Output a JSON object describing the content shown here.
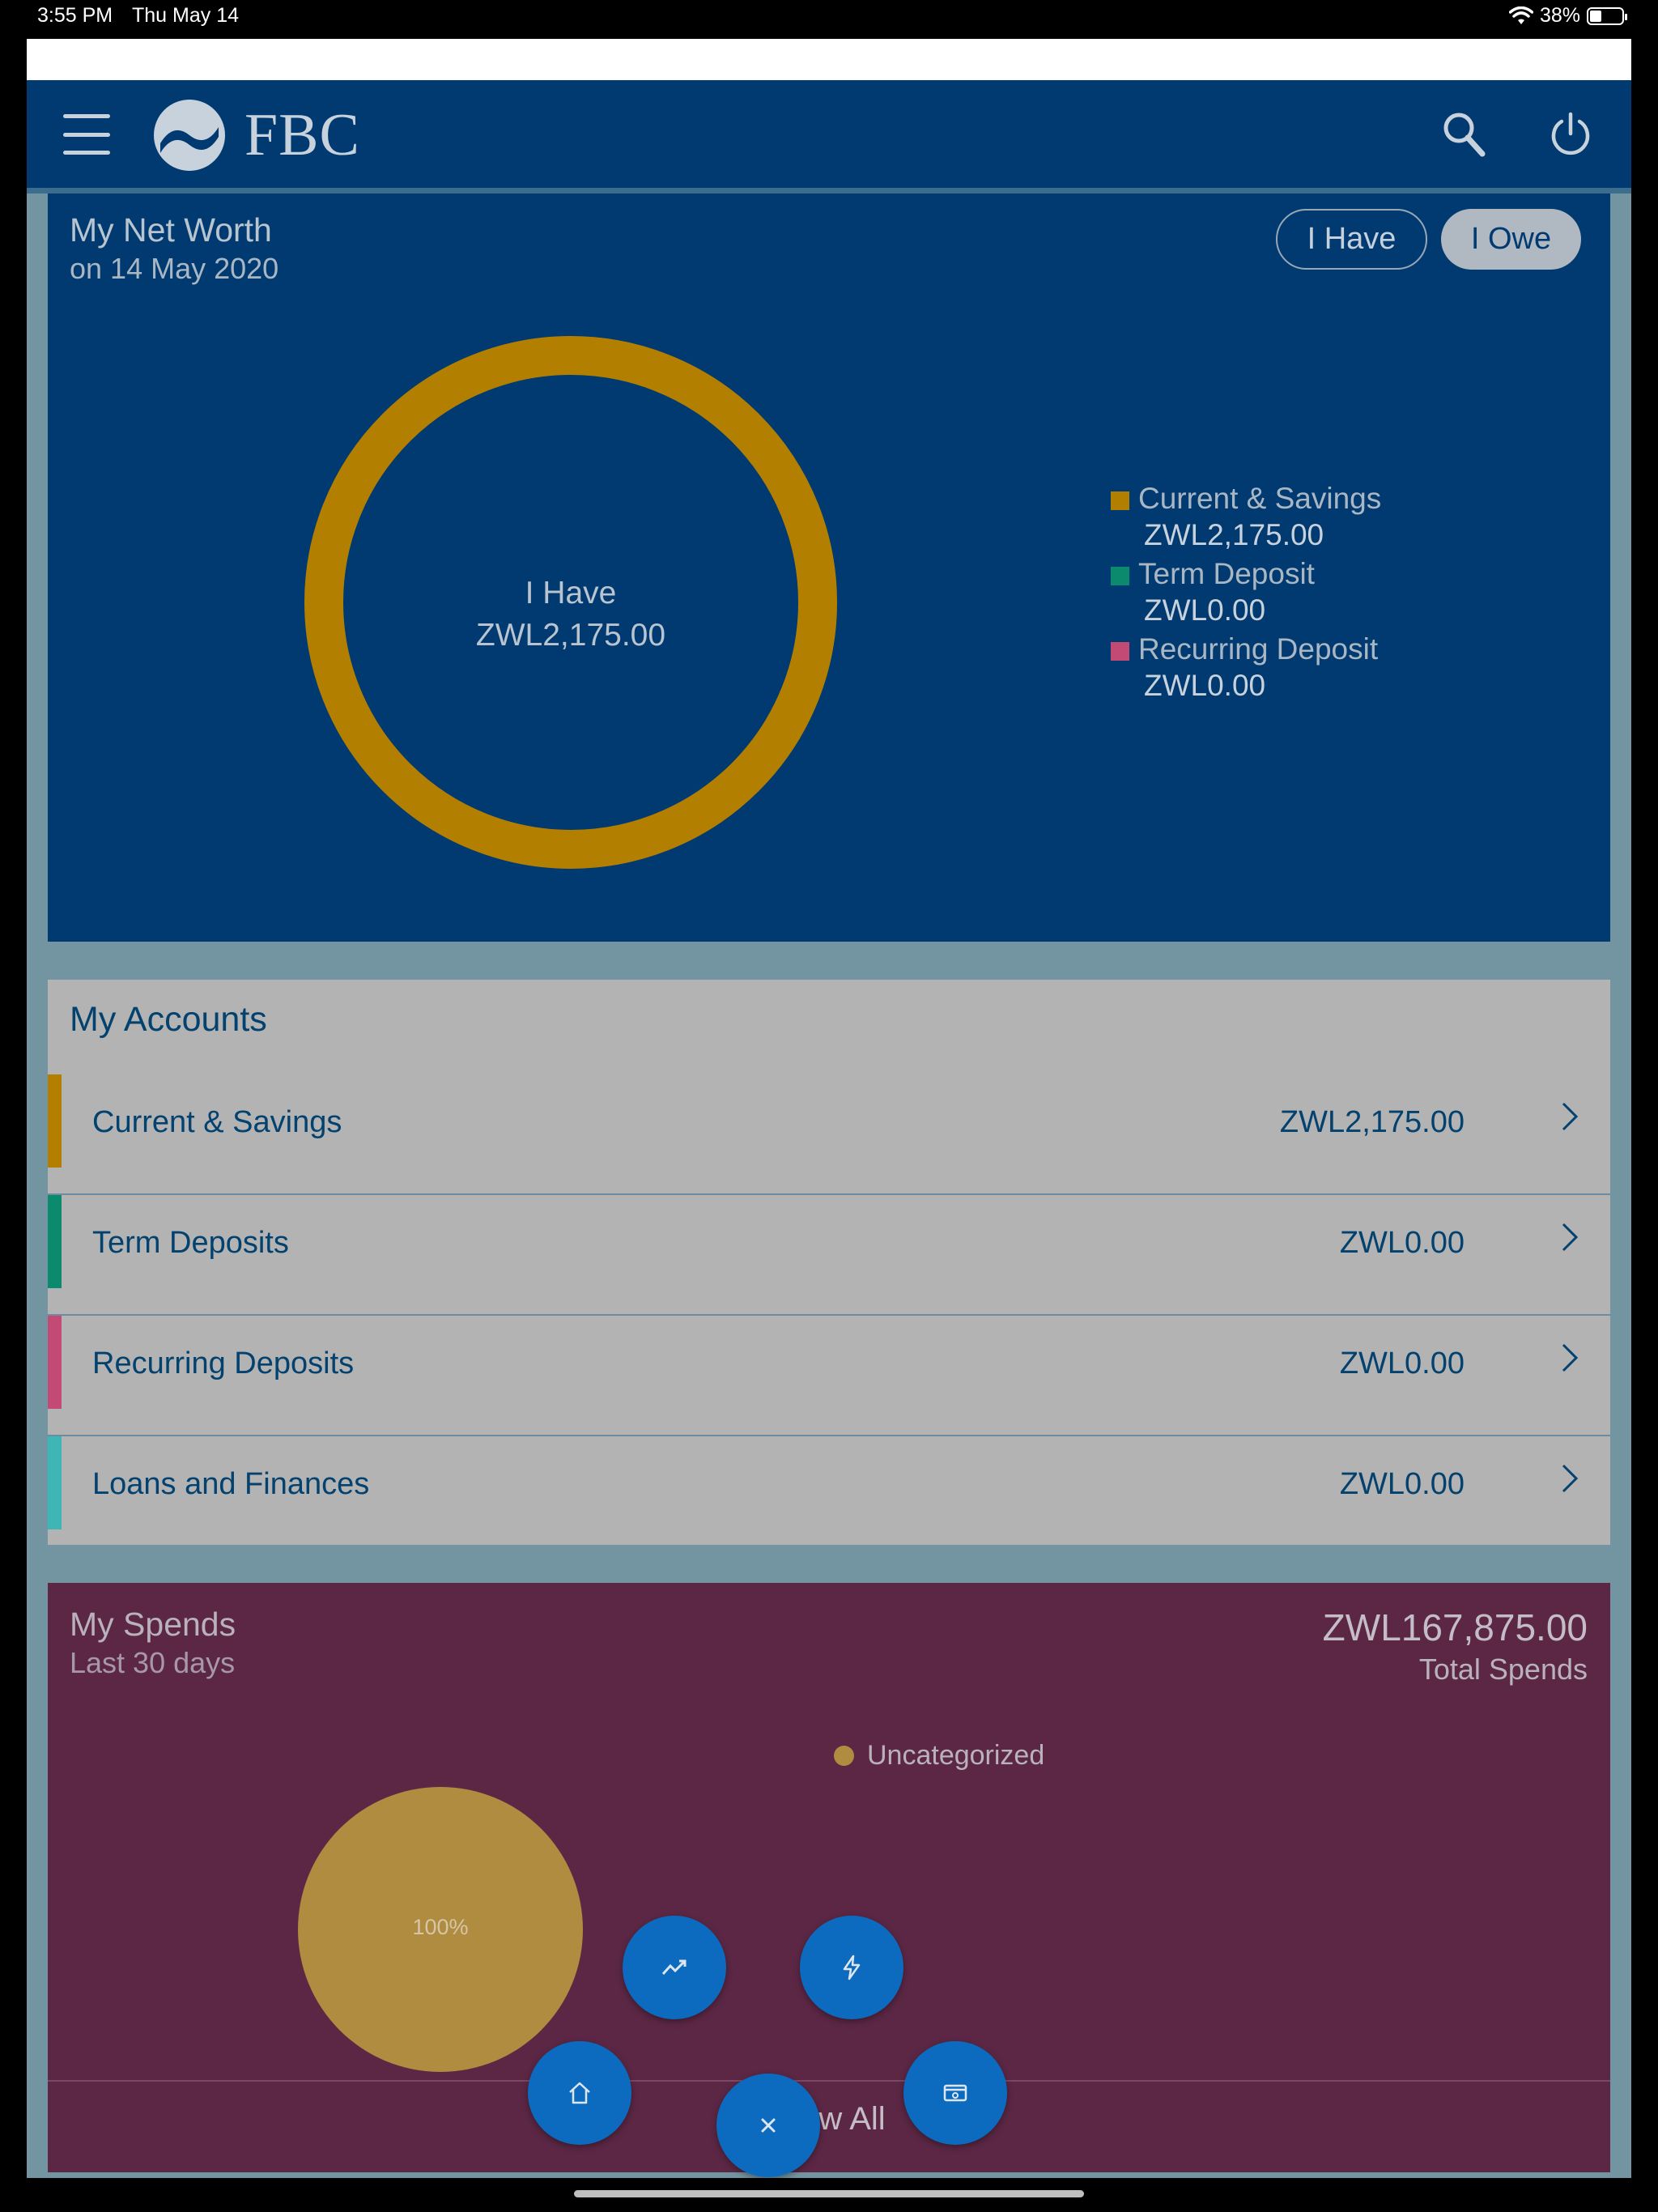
{
  "status_bar": {
    "time": "3:55 PM",
    "date": "Thu May 14",
    "battery": "38%"
  },
  "header": {
    "brand": "FBC"
  },
  "net_worth": {
    "title": "My Net Worth",
    "subtitle": "on 14 May 2020",
    "toggle_have": "I Have",
    "toggle_owe": "I Owe",
    "center_label": "I Have",
    "center_value": "ZWL2,175.00",
    "legend": [
      {
        "name": "Current & Savings",
        "value": "ZWL2,175.00",
        "color": "#b37f00"
      },
      {
        "name": "Term Deposit",
        "value": "ZWL0.00",
        "color": "#0b8a6e"
      },
      {
        "name": "Recurring Deposit",
        "value": "ZWL0.00",
        "color": "#c34a75"
      }
    ]
  },
  "accounts": {
    "title": "My Accounts",
    "items": [
      {
        "name": "Current & Savings",
        "amount": "ZWL2,175.00",
        "color": "#b37f00"
      },
      {
        "name": "Term Deposits",
        "amount": "ZWL0.00",
        "color": "#0b8a6e"
      },
      {
        "name": "Recurring Deposits",
        "amount": "ZWL0.00",
        "color": "#c34a75"
      },
      {
        "name": "Loans and Finances",
        "amount": "ZWL0.00",
        "color": "#3fb6b6"
      }
    ]
  },
  "spends": {
    "title": "My Spends",
    "subtitle": "Last 30 days",
    "total": "ZWL167,875.00",
    "total_label": "Total Spends",
    "legend_label": "Uncategorized",
    "legend_color": "#b08c40",
    "slice_label": "100%",
    "view_all": "View All"
  },
  "fabs": [
    "trend-icon",
    "lightning-icon",
    "home-icon",
    "wallet-icon",
    "close-icon"
  ],
  "chart_data": [
    {
      "type": "pie",
      "categories": [
        "Current & Savings",
        "Term Deposit",
        "Recurring Deposit"
      ],
      "values": [
        2175.0,
        0,
        0
      ]
    },
    {
      "type": "pie",
      "categories": [
        "Uncategorized"
      ],
      "values": [
        100
      ]
    }
  ]
}
